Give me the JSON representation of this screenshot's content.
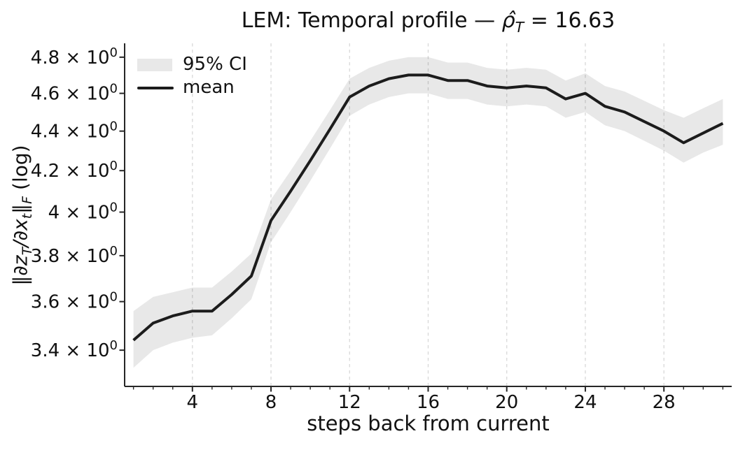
{
  "title": {
    "prefix": "LEM: Temporal profile — ",
    "rho_hat": "ρ̂",
    "rho_subscript": "T",
    "suffix": " = 16.63"
  },
  "axes": {
    "x_label": "steps back from current",
    "y_label_parts": {
      "norm_open": "‖",
      "dz": "∂z",
      "sub_T": "T",
      "dx": "/∂x",
      "sub_t": "t",
      "norm_close": "‖",
      "sub_F": "F",
      "tail": " (log)"
    },
    "x_major_ticks": [
      4,
      8,
      12,
      16,
      20,
      24,
      28
    ],
    "y_major_ticks": [
      {
        "value": 3.4,
        "mantissa": "3.4"
      },
      {
        "value": 3.6,
        "mantissa": "3.6"
      },
      {
        "value": 3.8,
        "mantissa": "3.8"
      },
      {
        "value": 4.0,
        "mantissa": "4"
      },
      {
        "value": 4.2,
        "mantissa": "4.2"
      },
      {
        "value": 4.4,
        "mantissa": "4.4"
      },
      {
        "value": 4.6,
        "mantissa": "4.6"
      },
      {
        "value": 4.8,
        "mantissa": "4.8"
      }
    ],
    "y_tick_times_suffix": " × 10",
    "y_tick_exponent": "0",
    "xlim": [
      0.55,
      31.45
    ],
    "ylim": [
      3.258,
      4.879
    ],
    "grid_x": [
      4,
      8,
      12,
      16,
      20,
      24,
      28
    ]
  },
  "legend": {
    "items": [
      {
        "swatch": "band",
        "label": "95% CI"
      },
      {
        "swatch": "line",
        "label": "mean"
      }
    ]
  },
  "colors": {
    "line": "#1c1c1c",
    "band": "rgba(0,0,0,0.09)",
    "legend_band": "#e8e8e8",
    "grid": "#d8d8d8",
    "spine": "#262626",
    "text": "#111111"
  },
  "chart_data": {
    "type": "line",
    "title": "LEM: Temporal profile — ρ̂_T = 16.63",
    "xlabel": "steps back from current",
    "ylabel": "‖∂z_T/∂x_t‖_F (log)",
    "yscale": "log",
    "xlim": [
      0.55,
      31.45
    ],
    "ylim": [
      3.258,
      4.879
    ],
    "grid": "vertical-dashed",
    "legend_position": "upper-left",
    "x": [
      1,
      2,
      3,
      4,
      5,
      6,
      7,
      8,
      9,
      10,
      11,
      12,
      13,
      14,
      15,
      16,
      17,
      18,
      19,
      20,
      21,
      22,
      23,
      24,
      25,
      26,
      27,
      28,
      29,
      30,
      31
    ],
    "series": [
      {
        "name": "mean",
        "values": [
          3.44,
          3.51,
          3.54,
          3.56,
          3.56,
          3.63,
          3.71,
          3.96,
          4.1,
          4.25,
          4.41,
          4.58,
          4.64,
          4.68,
          4.7,
          4.7,
          4.67,
          4.67,
          4.64,
          4.63,
          4.64,
          4.63,
          4.57,
          4.6,
          4.53,
          4.5,
          4.45,
          4.4,
          4.34,
          4.39,
          4.44
        ]
      },
      {
        "name": "95% CI upper",
        "values": [
          3.56,
          3.62,
          3.64,
          3.66,
          3.66,
          3.73,
          3.81,
          4.06,
          4.2,
          4.35,
          4.51,
          4.68,
          4.74,
          4.78,
          4.8,
          4.8,
          4.77,
          4.77,
          4.74,
          4.73,
          4.74,
          4.73,
          4.67,
          4.71,
          4.64,
          4.61,
          4.56,
          4.51,
          4.47,
          4.52,
          4.57
        ]
      },
      {
        "name": "95% CI lower",
        "values": [
          3.33,
          3.4,
          3.43,
          3.45,
          3.46,
          3.53,
          3.61,
          3.86,
          4.0,
          4.15,
          4.31,
          4.48,
          4.54,
          4.58,
          4.6,
          4.6,
          4.57,
          4.57,
          4.54,
          4.53,
          4.54,
          4.53,
          4.47,
          4.5,
          4.43,
          4.4,
          4.35,
          4.3,
          4.24,
          4.29,
          4.33
        ]
      }
    ]
  }
}
